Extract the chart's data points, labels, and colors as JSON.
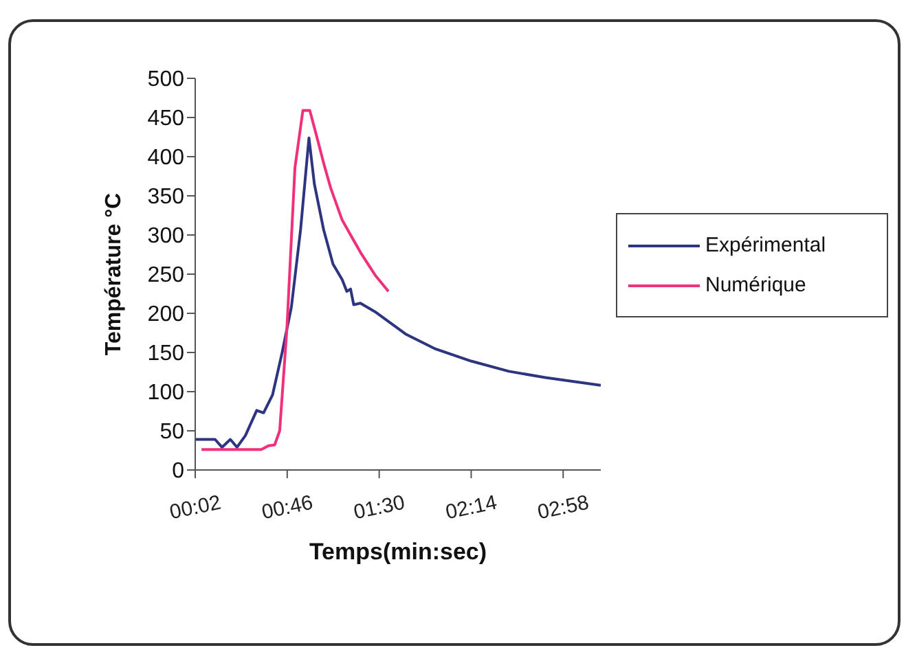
{
  "chart_data": {
    "type": "line",
    "xlabel": "Temps(min:sec)",
    "ylabel": "Température °C",
    "xlim": [
      2,
      196
    ],
    "xticks": [
      {
        "value": 2,
        "label": "00:02"
      },
      {
        "value": 46,
        "label": "00:46"
      },
      {
        "value": 90,
        "label": "01:30"
      },
      {
        "value": 134,
        "label": "02:14"
      },
      {
        "value": 178,
        "label": "02:58"
      }
    ],
    "ylim": [
      0,
      500
    ],
    "yticks": [
      0,
      50,
      100,
      150,
      200,
      250,
      300,
      350,
      400,
      450,
      500
    ],
    "grid": false,
    "legend": "right",
    "marker": "none",
    "series": [
      {
        "name": "Expérimental",
        "color": "#2e3580",
        "x": [
          2,
          11.5,
          14.8,
          18.8,
          22,
          26,
          31.4,
          34.7,
          39,
          43.5,
          48,
          52.4,
          56.4,
          59,
          63.4,
          67.9,
          72.3,
          74.5,
          76.3,
          77.8,
          81,
          88,
          103,
          116.5,
          134,
          152,
          169.5,
          183,
          196
        ],
        "values": [
          39,
          39,
          29,
          39,
          29,
          44,
          76,
          73,
          96,
          149,
          208,
          307,
          424,
          365,
          307,
          263,
          243,
          228,
          231,
          211,
          213,
          202,
          173,
          155,
          139,
          126,
          118,
          113,
          108
        ]
      },
      {
        "name": "Numérique",
        "color": "#f0307a",
        "x": [
          5,
          33.6,
          37,
          40,
          42.4,
          45.8,
          49.7,
          53.5,
          56.8,
          60,
          63.4,
          66.8,
          72.3,
          81,
          88,
          94.4
        ],
        "values": [
          26,
          26,
          31,
          32,
          50,
          178,
          386,
          459,
          459,
          427,
          392,
          360,
          319,
          278,
          249,
          228
        ]
      }
    ]
  }
}
